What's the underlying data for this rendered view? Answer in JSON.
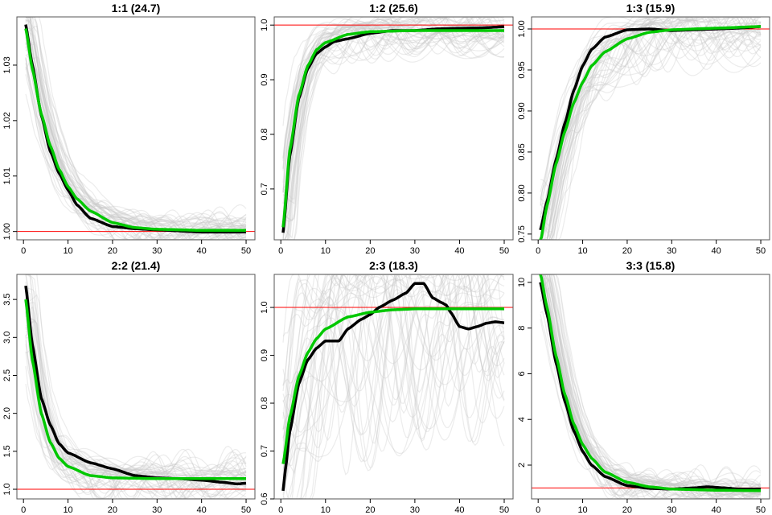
{
  "colors": {
    "observed": "#000000",
    "fitted": "#00c800",
    "reference": "#ff0000",
    "traces": "#c8c8c8"
  },
  "chart_data": [
    {
      "type": "line",
      "title": "1:1 (24.7)",
      "xlim": [
        -1.48,
        51.98
      ],
      "ylim": [
        0.9985,
        1.0387
      ],
      "xticks": [
        0,
        10,
        20,
        30,
        40,
        50
      ],
      "yticks": [
        "1.00",
        "1.01",
        "1.02",
        "1.03"
      ],
      "reference": 1.0,
      "trace_noise": 0.0025,
      "trace_count": 45,
      "observed": {
        "x": [
          0.5,
          2,
          4,
          6,
          8,
          10,
          12,
          15,
          20,
          25,
          30,
          40,
          50
        ],
        "y": [
          1.0373,
          1.03,
          1.021,
          1.0145,
          1.0105,
          1.0075,
          1.0048,
          1.0024,
          1.0009,
          1.0005,
          1.0003,
          0.9999,
          0.9999
        ]
      },
      "fitted": {
        "x": [
          0.5,
          2,
          4,
          6,
          8,
          10,
          12,
          15,
          20,
          25,
          30,
          40,
          50
        ],
        "y": [
          1.0366,
          1.0293,
          1.0212,
          1.0155,
          1.0112,
          1.0081,
          1.0059,
          1.0037,
          1.0016,
          1.0007,
          1.0004,
          1.0002,
          1.0002
        ]
      }
    },
    {
      "type": "line",
      "title": "1:2 (25.6)",
      "xlim": [
        -1.48,
        51.98
      ],
      "ylim": [
        0.607,
        1.015
      ],
      "xticks": [
        0,
        10,
        20,
        30,
        40,
        50
      ],
      "yticks": [
        "0.7",
        "0.8",
        "0.9",
        "1.0"
      ],
      "reference": 1.0,
      "trace_noise": 0.03,
      "trace_count": 45,
      "observed": {
        "x": [
          0.5,
          2,
          4,
          6,
          8,
          10,
          12,
          15,
          20,
          25,
          30,
          35,
          40,
          45,
          50
        ],
        "y": [
          0.62,
          0.76,
          0.865,
          0.92,
          0.948,
          0.96,
          0.97,
          0.975,
          0.985,
          0.99,
          0.99,
          0.993,
          0.994,
          0.995,
          0.997
        ]
      },
      "fitted": {
        "x": [
          0.5,
          2,
          4,
          6,
          8,
          10,
          15,
          20,
          30,
          40,
          50
        ],
        "y": [
          0.63,
          0.77,
          0.87,
          0.925,
          0.955,
          0.968,
          0.983,
          0.988,
          0.99,
          0.99,
          0.99
        ]
      }
    },
    {
      "type": "line",
      "title": "1:3 (15.9)",
      "xlim": [
        -1.48,
        51.98
      ],
      "ylim": [
        0.743,
        1.0147
      ],
      "xticks": [
        0,
        10,
        20,
        30,
        40,
        50
      ],
      "yticks": [
        "0.75",
        "0.80",
        "0.85",
        "0.90",
        "0.95",
        "1.00"
      ],
      "reference": 1.0,
      "trace_noise": 0.03,
      "trace_count": 45,
      "observed": {
        "x": [
          0.5,
          2,
          4,
          6,
          8,
          10,
          12,
          15,
          20,
          25,
          30,
          35,
          40,
          45,
          50
        ],
        "y": [
          0.755,
          0.79,
          0.84,
          0.885,
          0.925,
          0.955,
          0.975,
          0.99,
          0.999,
          1.0,
          0.998,
          0.999,
          1.0,
          1.001,
          1.003
        ]
      },
      "fitted": {
        "x": [
          0.5,
          2,
          4,
          6,
          8,
          10,
          12,
          15,
          20,
          25,
          30,
          40,
          50
        ],
        "y": [
          0.74,
          0.785,
          0.835,
          0.875,
          0.91,
          0.935,
          0.955,
          0.972,
          0.988,
          0.996,
          0.999,
          1.001,
          1.003
        ]
      }
    },
    {
      "type": "line",
      "title": "2:2 (21.4)",
      "xlim": [
        -1.48,
        51.98
      ],
      "ylim": [
        0.873,
        3.83
      ],
      "xticks": [
        0,
        10,
        20,
        30,
        40,
        50
      ],
      "yticks": [
        "1.0",
        "1.5",
        "2.0",
        "2.5",
        "3.0",
        "3.5"
      ],
      "reference": 1.0,
      "trace_noise": 0.25,
      "trace_count": 45,
      "observed": {
        "x": [
          0.5,
          2,
          4,
          6,
          8,
          10,
          15,
          20,
          25,
          30,
          35,
          40,
          45,
          48,
          50
        ],
        "y": [
          3.68,
          2.9,
          2.2,
          1.85,
          1.6,
          1.48,
          1.35,
          1.27,
          1.18,
          1.15,
          1.14,
          1.12,
          1.09,
          1.07,
          1.08
        ]
      },
      "fitted": {
        "x": [
          0.5,
          2,
          4,
          6,
          8,
          10,
          15,
          20,
          30,
          40,
          50
        ],
        "y": [
          3.5,
          2.7,
          2.0,
          1.62,
          1.41,
          1.3,
          1.18,
          1.15,
          1.14,
          1.14,
          1.14
        ]
      }
    },
    {
      "type": "line",
      "title": "2:3 (18.3)",
      "xlim": [
        -1.48,
        51.98
      ],
      "ylim": [
        0.6,
        1.069
      ],
      "xticks": [
        0,
        10,
        20,
        30,
        40,
        50
      ],
      "yticks": [
        "0.6",
        "0.7",
        "0.8",
        "0.9",
        "1.0"
      ],
      "reference": 1.0,
      "trace_noise": 0.18,
      "trace_count": 40,
      "observed": {
        "x": [
          0.5,
          1,
          2,
          4,
          6,
          8,
          10,
          13,
          15,
          18,
          20,
          22,
          25,
          28,
          30,
          32,
          34,
          36,
          37,
          38,
          40,
          42,
          44,
          46,
          48,
          50
        ],
        "y": [
          0.617,
          0.66,
          0.74,
          0.84,
          0.89,
          0.915,
          0.93,
          0.93,
          0.955,
          0.975,
          0.985,
          1.0,
          1.015,
          1.03,
          1.05,
          1.05,
          1.02,
          1.01,
          1.005,
          0.99,
          0.96,
          0.955,
          0.96,
          0.967,
          0.97,
          0.968
        ]
      },
      "fitted": {
        "x": [
          0.5,
          2,
          4,
          6,
          8,
          10,
          15,
          20,
          25,
          30,
          40,
          50
        ],
        "y": [
          0.673,
          0.77,
          0.855,
          0.905,
          0.935,
          0.955,
          0.98,
          0.99,
          0.995,
          0.997,
          0.997,
          0.997
        ]
      }
    },
    {
      "type": "line",
      "title": "3:3 (15.8)",
      "xlim": [
        -1.48,
        51.98
      ],
      "ylim": [
        0.52,
        10.35
      ],
      "xticks": [
        0,
        10,
        20,
        30,
        40,
        50
      ],
      "yticks": [
        "2",
        "4",
        "6",
        "8",
        "10"
      ],
      "reference": 1.0,
      "trace_noise": 0.6,
      "trace_count": 45,
      "observed": {
        "x": [
          0.5,
          2,
          4,
          6,
          8,
          10,
          12,
          15,
          20,
          25,
          30,
          35,
          38,
          42,
          45,
          50
        ],
        "y": [
          10,
          8.6,
          6.5,
          4.8,
          3.5,
          2.6,
          2.0,
          1.5,
          1.1,
          0.98,
          0.95,
          1.0,
          1.05,
          1.0,
          0.95,
          0.95
        ]
      },
      "fitted": {
        "x": [
          0.5,
          2,
          4,
          6,
          8,
          10,
          12,
          15,
          20,
          25,
          30,
          40,
          50
        ],
        "y": [
          10.4,
          8.9,
          6.8,
          5.1,
          3.8,
          2.9,
          2.3,
          1.7,
          1.25,
          1.05,
          0.95,
          0.9,
          0.88
        ]
      }
    }
  ]
}
